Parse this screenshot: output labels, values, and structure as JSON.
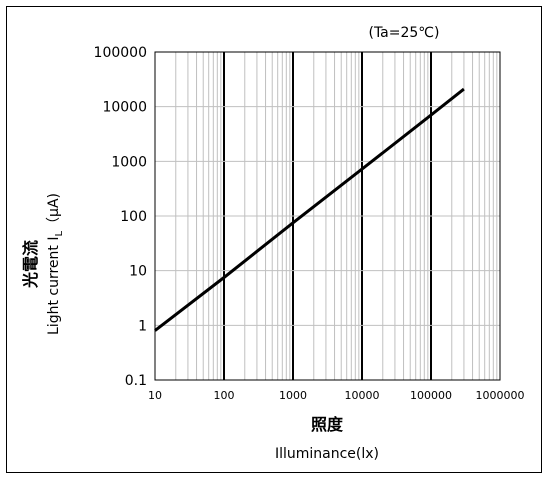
{
  "chart_data": {
    "type": "line",
    "x_scale": "log",
    "y_scale": "log",
    "annotation": "(Ta=25℃)",
    "ylabel_ja": "光電流",
    "ylabel_en_prefix": "Light current I",
    "ylabel_en_sub": "L",
    "ylabel_en_unit": "（μA)",
    "xlabel_ja": "照度",
    "xlabel_en": "Illuminance(lx)",
    "xlim": [
      10,
      1000000
    ],
    "ylim": [
      0.1,
      100000
    ],
    "x_ticks": [
      "10",
      "100",
      "1000",
      "10000",
      "100000",
      "1000000"
    ],
    "y_ticks": [
      "100000",
      "10000",
      "1000",
      "100",
      "10",
      "1",
      "0.1"
    ],
    "grid": true,
    "series": [
      {
        "x": [
          10,
          100,
          1000,
          10000,
          100000,
          300000
        ],
        "y": [
          0.8,
          7.5,
          75,
          720,
          7000,
          21000
        ]
      }
    ]
  }
}
